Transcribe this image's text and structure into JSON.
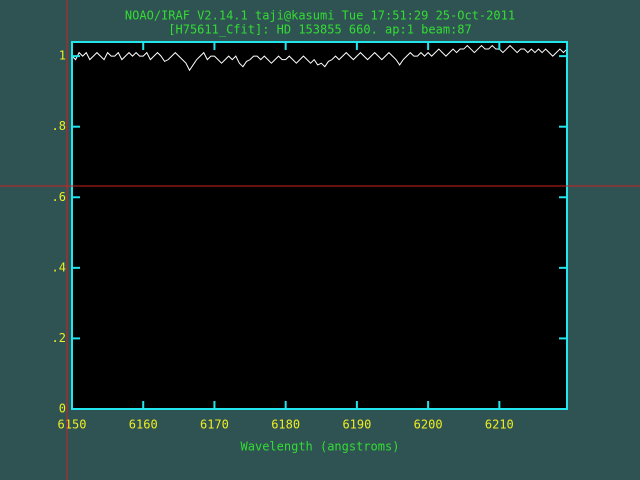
{
  "chart_data": {
    "type": "line",
    "title": "NOAO/IRAF V2.14.1 taji@kasumi Tue 17:51:29 25-Oct-2011",
    "subtitle": "[H75611_Cfit]:  HD 153855 660. ap:1 beam:87",
    "xlabel": "Wavelength (angstroms)",
    "color": "#ffffff",
    "x": [
      6150,
      6150.5,
      6151,
      6151.5,
      6152,
      6152.5,
      6153,
      6153.5,
      6154,
      6154.5,
      6155,
      6155.5,
      6156,
      6156.5,
      6157,
      6157.5,
      6158,
      6158.5,
      6159,
      6159.5,
      6160,
      6160.5,
      6161,
      6161.5,
      6162,
      6162.5,
      6163,
      6163.5,
      6164,
      6164.5,
      6165,
      6165.5,
      6166,
      6166.5,
      6167,
      6167.5,
      6168,
      6168.5,
      6169,
      6169.5,
      6170,
      6170.5,
      6171,
      6171.5,
      6172,
      6172.5,
      6173,
      6173.5,
      6174,
      6174.5,
      6175,
      6175.5,
      6176,
      6176.5,
      6177,
      6177.5,
      6178,
      6178.5,
      6179,
      6179.5,
      6180,
      6180.5,
      6181,
      6181.5,
      6182,
      6182.5,
      6183,
      6183.5,
      6184,
      6184.5,
      6185,
      6185.5,
      6186,
      6186.5,
      6187,
      6187.5,
      6188,
      6188.5,
      6189,
      6189.5,
      6190,
      6190.5,
      6191,
      6191.5,
      6192,
      6192.5,
      6193,
      6193.5,
      6194,
      6194.5,
      6195,
      6195.5,
      6196,
      6196.5,
      6197,
      6197.5,
      6198,
      6198.5,
      6199,
      6199.5,
      6200,
      6200.5,
      6201,
      6201.5,
      6202,
      6202.5,
      6203,
      6203.5,
      6204,
      6204.5,
      6205,
      6205.5,
      6206,
      6206.5,
      6207,
      6207.5,
      6208,
      6208.5,
      6209,
      6209.5,
      6210,
      6210.5,
      6211,
      6211.5,
      6212,
      6212.5,
      6213,
      6213.5,
      6214,
      6214.5,
      6215,
      6215.5,
      6216,
      6216.5,
      6217,
      6217.5,
      6218,
      6218.5,
      6219,
      6219.5
    ],
    "values": [
      1.0,
      0.99,
      1.01,
      1.0,
      1.01,
      0.99,
      1.0,
      1.01,
      1.0,
      0.99,
      1.01,
      1.0,
      1.0,
      1.01,
      0.99,
      1.0,
      1.01,
      1.0,
      1.01,
      1.0,
      1.0,
      1.01,
      0.99,
      1.0,
      1.01,
      1.0,
      0.985,
      0.99,
      1.0,
      1.01,
      1.0,
      0.99,
      0.98,
      0.96,
      0.975,
      0.99,
      1.0,
      1.01,
      0.99,
      1.0,
      1.0,
      0.99,
      0.98,
      0.99,
      1.0,
      0.99,
      1.0,
      0.98,
      0.97,
      0.985,
      0.99,
      1.0,
      1.0,
      0.99,
      1.0,
      0.99,
      0.98,
      0.99,
      1.0,
      0.99,
      0.99,
      1.0,
      0.99,
      0.98,
      0.99,
      1.0,
      0.99,
      0.98,
      0.99,
      0.975,
      0.98,
      0.97,
      0.985,
      0.99,
      1.0,
      0.99,
      1.0,
      1.01,
      1.0,
      0.99,
      1.0,
      1.01,
      1.0,
      0.99,
      1.0,
      1.01,
      1.0,
      0.99,
      1.0,
      1.01,
      1.0,
      0.99,
      0.975,
      0.99,
      1.0,
      1.01,
      1.0,
      1.0,
      1.01,
      1.0,
      1.01,
      1.0,
      1.01,
      1.02,
      1.01,
      1.0,
      1.01,
      1.02,
      1.01,
      1.02,
      1.02,
      1.03,
      1.02,
      1.01,
      1.02,
      1.03,
      1.02,
      1.02,
      1.03,
      1.02,
      1.02,
      1.01,
      1.02,
      1.03,
      1.02,
      1.01,
      1.02,
      1.02,
      1.01,
      1.02,
      1.01,
      1.02,
      1.01,
      1.02,
      1.01,
      1.0,
      1.01,
      1.02,
      1.01,
      1.02
    ],
    "xlim": [
      6150,
      6219.5
    ],
    "xticks": [
      6150,
      6160,
      6170,
      6180,
      6190,
      6200,
      6210
    ],
    "ylim": [
      0,
      1.04
    ],
    "yticks": [
      0,
      {
        "value": 0.2,
        "label": ".2"
      },
      {
        "value": 0.4,
        "label": ".4"
      },
      {
        "value": 0.6,
        "label": ".6"
      },
      {
        "value": 0.8,
        "label": ".8"
      },
      1
    ]
  }
}
